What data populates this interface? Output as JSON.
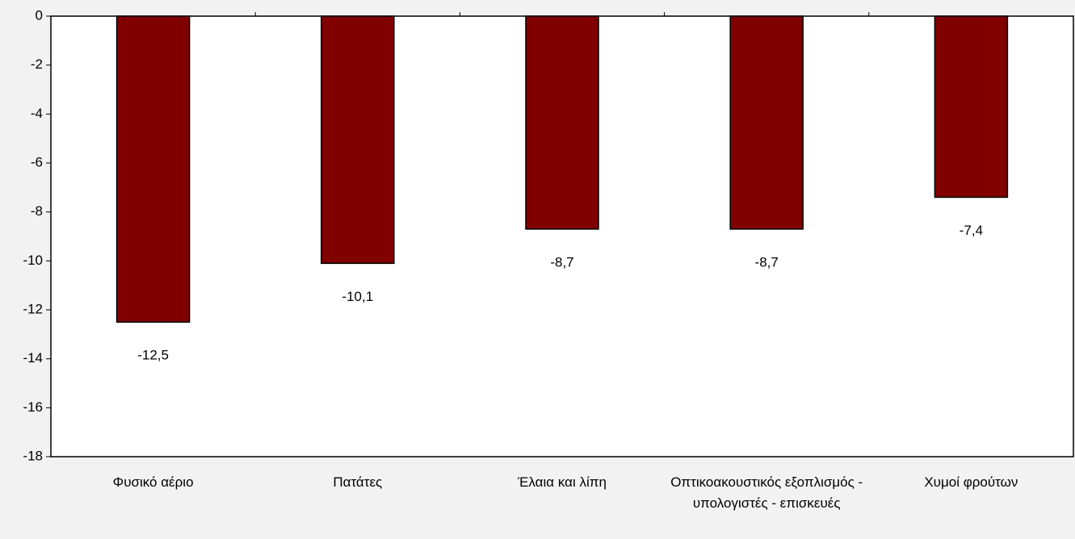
{
  "chart_data": {
    "type": "bar",
    "categories": [
      "Φυσικό αέριο",
      "Πατάτες",
      "Έλαια και λίπη",
      "Οπτικοακουστικός εξοπλισμός - υπολογιστές - επισκευές",
      "Χυμοί φρούτων"
    ],
    "values": [
      -12.5,
      -10.1,
      -8.7,
      -8.7,
      -7.4
    ],
    "value_labels": [
      "-12,5",
      "-10,1",
      "-8,7",
      "-8,7",
      "-7,4"
    ],
    "color": "#800000",
    "ylim": [
      -18,
      0
    ],
    "yticks": [
      0,
      -2,
      -4,
      -6,
      -8,
      -10,
      -12,
      -14,
      -16,
      -18
    ]
  }
}
